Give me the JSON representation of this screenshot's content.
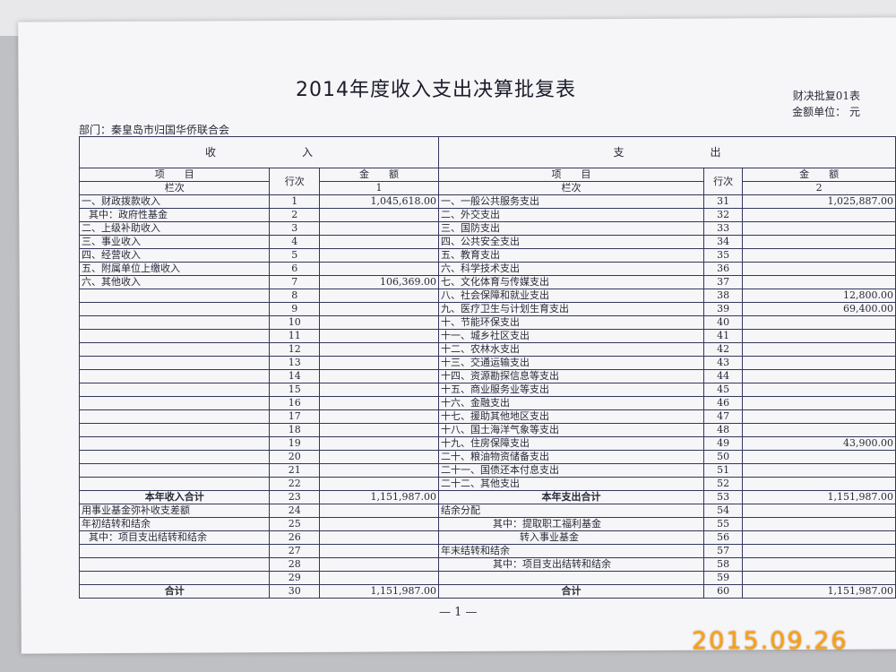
{
  "title": "2014年度收入支出决算批复表",
  "form_code": "财决批复01表",
  "unit": "金额单位：  元",
  "department": "部门：秦皇岛市归国华侨联合会",
  "headers": {
    "income": "收　　　　　　　　入",
    "expense": "支　　　　　　　　出",
    "item": "项　　目",
    "row_no": "行次",
    "amount": "金　　额",
    "column_no": "栏次",
    "income_col": "1",
    "expense_col": "2"
  },
  "income_rows": [
    {
      "label": "一、财政拨款收入",
      "no": "1",
      "amount": "1,045,618.00"
    },
    {
      "label": "其中：政府性基金",
      "no": "2",
      "amount": "",
      "style": "ind1"
    },
    {
      "label": "二、上级补助收入",
      "no": "3",
      "amount": ""
    },
    {
      "label": "三、事业收入",
      "no": "4",
      "amount": ""
    },
    {
      "label": "四、经营收入",
      "no": "5",
      "amount": ""
    },
    {
      "label": "五、附属单位上缴收入",
      "no": "6",
      "amount": ""
    },
    {
      "label": "六、其他收入",
      "no": "7",
      "amount": "106,369.00"
    },
    {
      "label": "",
      "no": "8",
      "amount": ""
    },
    {
      "label": "",
      "no": "9",
      "amount": ""
    },
    {
      "label": "",
      "no": "10",
      "amount": ""
    },
    {
      "label": "",
      "no": "11",
      "amount": ""
    },
    {
      "label": "",
      "no": "12",
      "amount": ""
    },
    {
      "label": "",
      "no": "13",
      "amount": ""
    },
    {
      "label": "",
      "no": "14",
      "amount": ""
    },
    {
      "label": "",
      "no": "15",
      "amount": ""
    },
    {
      "label": "",
      "no": "16",
      "amount": ""
    },
    {
      "label": "",
      "no": "17",
      "amount": ""
    },
    {
      "label": "",
      "no": "18",
      "amount": ""
    },
    {
      "label": "",
      "no": "19",
      "amount": ""
    },
    {
      "label": "",
      "no": "20",
      "amount": ""
    },
    {
      "label": "",
      "no": "21",
      "amount": ""
    },
    {
      "label": "",
      "no": "22",
      "amount": ""
    },
    {
      "label": "本年收入合计",
      "no": "23",
      "amount": "1,151,987.00",
      "style": "bold"
    },
    {
      "label": "用事业基金弥补收支差额",
      "no": "24",
      "amount": ""
    },
    {
      "label": "年初结转和结余",
      "no": "25",
      "amount": ""
    },
    {
      "label": "其中：项目支出结转和结余",
      "no": "26",
      "amount": "",
      "style": "ind1"
    },
    {
      "label": "",
      "no": "27",
      "amount": ""
    },
    {
      "label": "",
      "no": "28",
      "amount": ""
    },
    {
      "label": "",
      "no": "29",
      "amount": ""
    },
    {
      "label": "合计",
      "no": "30",
      "amount": "1,151,987.00",
      "style": "bold"
    }
  ],
  "expense_rows": [
    {
      "label": "一、一般公共服务支出",
      "no": "31",
      "amount": "1,025,887.00"
    },
    {
      "label": "二、外交支出",
      "no": "32",
      "amount": ""
    },
    {
      "label": "三、国防支出",
      "no": "33",
      "amount": ""
    },
    {
      "label": "四、公共安全支出",
      "no": "34",
      "amount": ""
    },
    {
      "label": "五、教育支出",
      "no": "35",
      "amount": ""
    },
    {
      "label": "六、科学技术支出",
      "no": "36",
      "amount": ""
    },
    {
      "label": "七、文化体育与传媒支出",
      "no": "37",
      "amount": ""
    },
    {
      "label": "八、社会保障和就业支出",
      "no": "38",
      "amount": "12,800.00"
    },
    {
      "label": "九、医疗卫生与计划生育支出",
      "no": "39",
      "amount": "69,400.00"
    },
    {
      "label": "十、节能环保支出",
      "no": "40",
      "amount": ""
    },
    {
      "label": "十一、城乡社区支出",
      "no": "41",
      "amount": ""
    },
    {
      "label": "十二、农林水支出",
      "no": "42",
      "amount": ""
    },
    {
      "label": "十三、交通运输支出",
      "no": "43",
      "amount": ""
    },
    {
      "label": "十四、资源勘探信息等支出",
      "no": "44",
      "amount": ""
    },
    {
      "label": "十五、商业服务业等支出",
      "no": "45",
      "amount": ""
    },
    {
      "label": "十六、金融支出",
      "no": "46",
      "amount": ""
    },
    {
      "label": "十七、援助其他地区支出",
      "no": "47",
      "amount": ""
    },
    {
      "label": "十八、国土海洋气象等支出",
      "no": "48",
      "amount": ""
    },
    {
      "label": "十九、住房保障支出",
      "no": "49",
      "amount": "43,900.00"
    },
    {
      "label": "二十、粮油物资储备支出",
      "no": "50",
      "amount": ""
    },
    {
      "label": "二十一、国债还本付息支出",
      "no": "51",
      "amount": ""
    },
    {
      "label": "二十二、其他支出",
      "no": "52",
      "amount": ""
    },
    {
      "label": "本年支出合计",
      "no": "53",
      "amount": "1,151,987.00",
      "style": "bold"
    },
    {
      "label": "结余分配",
      "no": "54",
      "amount": ""
    },
    {
      "label": "其中：提取职工福利基金",
      "no": "55",
      "amount": "",
      "style": "ind2"
    },
    {
      "label": "转入事业基金",
      "no": "56",
      "amount": "",
      "style": "ind3"
    },
    {
      "label": "年末结转和结余",
      "no": "57",
      "amount": ""
    },
    {
      "label": "其中：项目支出结转和结余",
      "no": "58",
      "amount": "",
      "style": "ind2"
    },
    {
      "label": "",
      "no": "59",
      "amount": ""
    },
    {
      "label": "合计",
      "no": "60",
      "amount": "1,151,987.00",
      "style": "bold"
    }
  ],
  "page_number": "— 1 —",
  "date_stamp": "2015.09.26",
  "colors": {
    "stamp": "#f5a21a",
    "lines": "#33365a",
    "paper": "#f6f6f8"
  }
}
